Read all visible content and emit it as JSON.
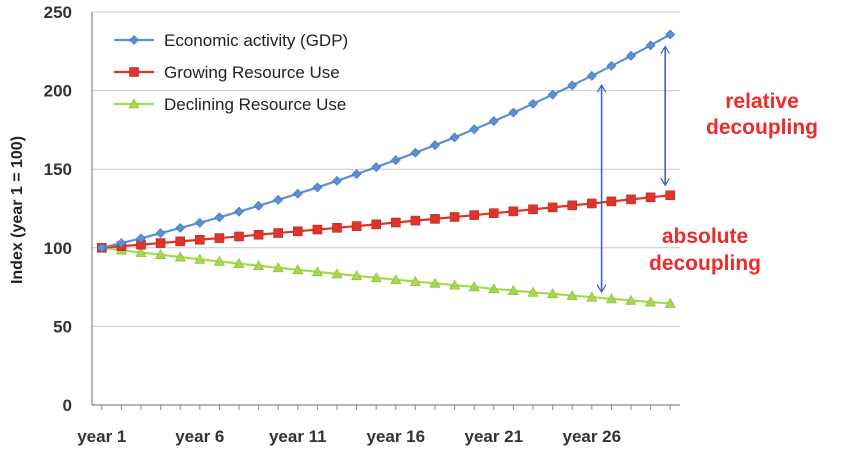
{
  "chart_data": {
    "type": "line",
    "ylabel": "Index (year 1 = 100)",
    "ylim": [
      0,
      250
    ],
    "yticks": [
      0,
      50,
      100,
      150,
      200,
      250
    ],
    "grid": "horizontal",
    "legend_position": "top-left",
    "x": [
      1,
      2,
      3,
      4,
      5,
      6,
      7,
      8,
      9,
      10,
      11,
      12,
      13,
      14,
      15,
      16,
      17,
      18,
      19,
      20,
      21,
      22,
      23,
      24,
      25,
      26,
      27,
      28,
      29,
      30
    ],
    "x_tick_labels": [
      {
        "x": 1,
        "label": "year 1"
      },
      {
        "x": 6,
        "label": "year 6"
      },
      {
        "x": 11,
        "label": "year 11"
      },
      {
        "x": 16,
        "label": "year 16"
      },
      {
        "x": 21,
        "label": "year 21"
      },
      {
        "x": 26,
        "label": "year 26"
      }
    ],
    "series": [
      {
        "name": "Economic activity (GDP)",
        "color": "#5b8fd6",
        "marker": "diamond",
        "values": [
          100,
          103,
          106,
          109.3,
          112.6,
          115.9,
          119.4,
          123,
          126.7,
          130.5,
          134.4,
          138.4,
          142.6,
          146.9,
          151.3,
          155.8,
          160.5,
          165.3,
          170.2,
          175.4,
          180.6,
          186,
          191.6,
          197.4,
          203.3,
          209.4,
          215.7,
          222.1,
          228.8,
          235.7
        ]
      },
      {
        "name": "Growing Resource Use",
        "color": "#e0342a",
        "marker": "square",
        "values": [
          100,
          101,
          102,
          103,
          104.1,
          105.1,
          106.2,
          107.2,
          108.3,
          109.4,
          110.5,
          111.6,
          112.7,
          113.8,
          114.9,
          116.1,
          117.3,
          118.4,
          119.6,
          120.8,
          122,
          123.2,
          124.5,
          125.7,
          127,
          128.2,
          129.5,
          130.8,
          132.1,
          133.4
        ]
      },
      {
        "name": "Declining Resource Use",
        "color": "#a7d94c",
        "marker": "triangle",
        "values": [
          100,
          98.5,
          97,
          95.6,
          94.1,
          92.7,
          91.3,
          90,
          88.6,
          87.3,
          86,
          84.7,
          83.4,
          82.2,
          80.9,
          79.7,
          78.5,
          77.4,
          76.2,
          75.1,
          73.9,
          72.8,
          71.7,
          70.7,
          69.6,
          68.6,
          67.5,
          66.5,
          65.5,
          64.6
        ]
      }
    ],
    "annotations": [
      {
        "text": [
          "relative",
          "decoupling"
        ],
        "arrow_x": 30,
        "arrow_y": [
          133.4,
          235.7
        ]
      },
      {
        "text": [
          "absolute",
          "decoupling"
        ],
        "arrow_x": 26.5,
        "arrow_y": [
          68,
          206
        ]
      }
    ]
  }
}
